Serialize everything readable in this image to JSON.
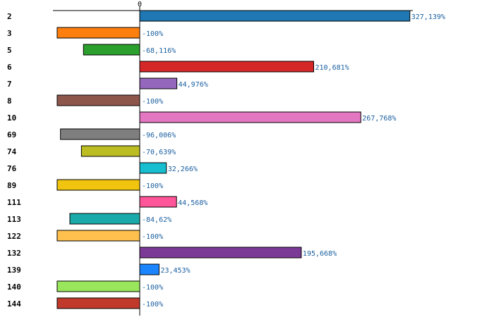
{
  "chart_data": {
    "type": "bar",
    "orientation": "horizontal",
    "zero_tick_label": "0",
    "categories": [
      "2",
      "3",
      "5",
      "6",
      "7",
      "8",
      "10",
      "69",
      "74",
      "76",
      "89",
      "111",
      "113",
      "122",
      "132",
      "139",
      "140",
      "144"
    ],
    "values": [
      327.139,
      -100,
      -68.116,
      210.681,
      44.976,
      -100,
      267.768,
      -96.006,
      -70.639,
      32.266,
      -100,
      44.568,
      -84.62,
      -100,
      195.668,
      23.453,
      -100,
      -100
    ],
    "value_labels": [
      "327,139%",
      "-100%",
      "-68,116%",
      "210,681%",
      "44,976%",
      "-100%",
      "267,768%",
      "-96,006%",
      "-70,639%",
      "32,266%",
      "-100%",
      "44,568%",
      "-84,62%",
      "-100%",
      "195,668%",
      "23,453%",
      "-100%",
      "-100%"
    ],
    "colors": [
      "#1f77b4",
      "#ff7f0e",
      "#2ca02c",
      "#d62728",
      "#9467bd",
      "#8c564b",
      "#e377c2",
      "#7f7f7f",
      "#bcbd22",
      "#17becf",
      "#f1c40f",
      "#ff5599",
      "#1aaaaa",
      "#ffc04d",
      "#7b3a96",
      "#1a85ff",
      "#99e65c",
      "#c0392b"
    ],
    "xlim": [
      -104,
      340
    ],
    "title": "",
    "xlabel": "",
    "ylabel": "",
    "grid": false,
    "legend": "none"
  }
}
